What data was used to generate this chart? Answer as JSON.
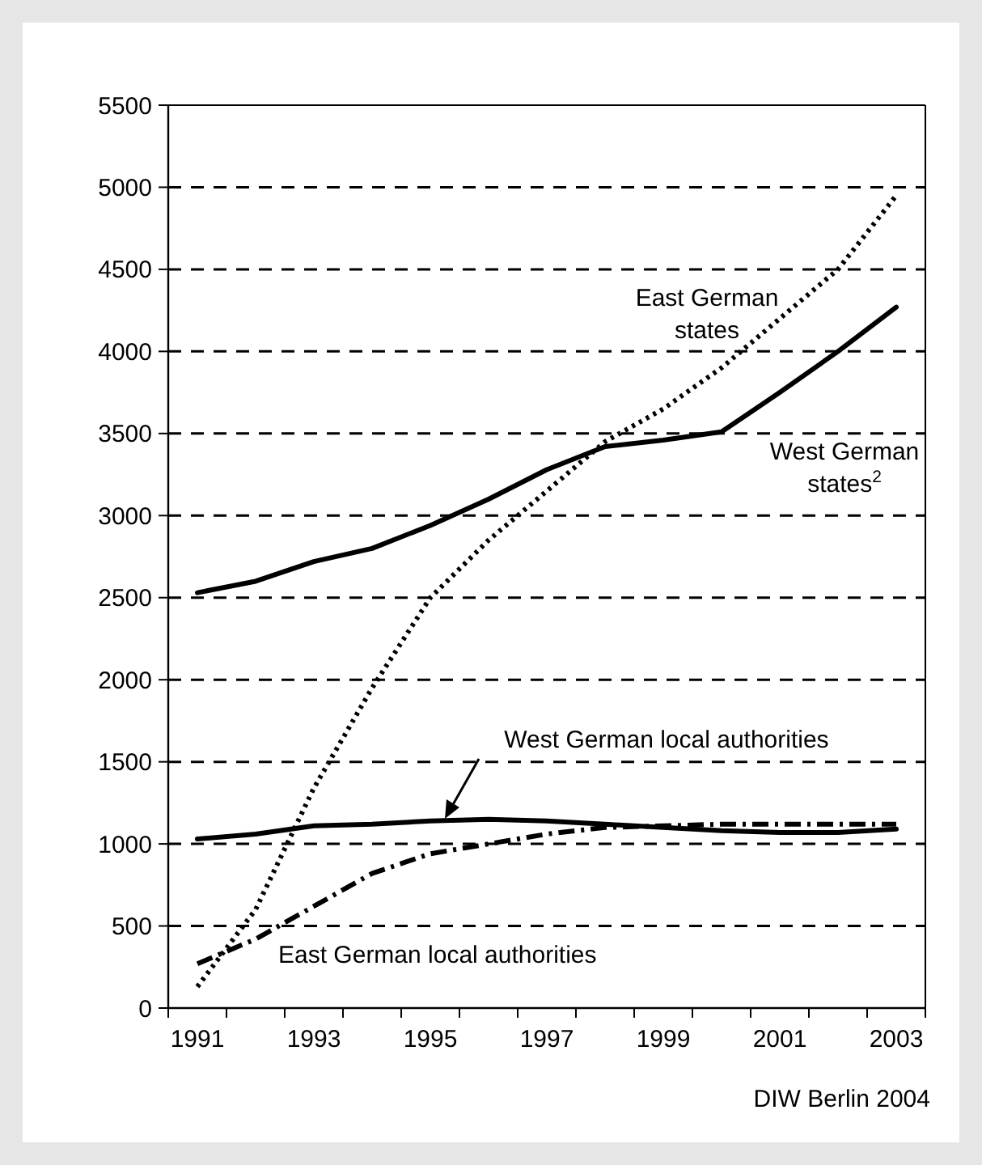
{
  "chart_data": {
    "type": "line",
    "categories": [
      "1991",
      null,
      "1993",
      null,
      "1995",
      null,
      "1997",
      null,
      "1999",
      null,
      "2001",
      null,
      "2003"
    ],
    "ylim": [
      0,
      5500
    ],
    "yticks": [
      0,
      500,
      1000,
      1500,
      2000,
      2500,
      3000,
      3500,
      4000,
      4500,
      5000,
      5500
    ],
    "grid": "y",
    "series": [
      {
        "name": "West German states$^{2}$",
        "color": "#000000",
        "line_style": "solid",
        "values": [
          2530,
          2600,
          2720,
          2800,
          2940,
          3100,
          3280,
          3420,
          3460,
          3510,
          3750,
          4000,
          4270
        ]
      },
      {
        "name": "East German states",
        "color": "#000000",
        "line_style": "dotted",
        "values": [
          130,
          600,
          1340,
          1950,
          2500,
          2850,
          3150,
          3450,
          3650,
          3900,
          4200,
          4500,
          4950
        ]
      },
      {
        "name": "West German local authorities",
        "color": "#000000",
        "line_style": "solid",
        "values": [
          1030,
          1060,
          1110,
          1120,
          1140,
          1150,
          1140,
          1120,
          1100,
          1080,
          1070,
          1070,
          1090
        ]
      },
      {
        "name": "East German local authorities",
        "color": "#000000",
        "line_style": "dashdot",
        "values": [
          270,
          420,
          620,
          820,
          940,
          1000,
          1060,
          1100,
          1110,
          1120,
          1120,
          1120,
          1120
        ]
      }
    ],
    "annotations": [
      "DIW Berlin 2004"
    ]
  }
}
